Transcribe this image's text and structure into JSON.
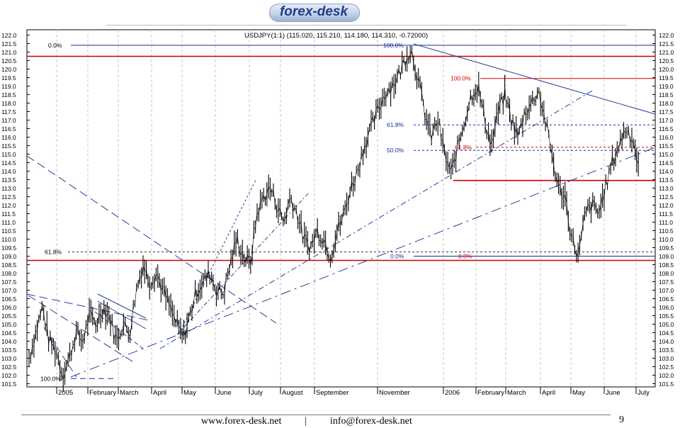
{
  "brand": {
    "logo_text": "forex-desk"
  },
  "footer": {
    "website": "www.forex-desk.net",
    "separator": "|",
    "email": "info@forex-desk.net",
    "page_number": "9"
  },
  "chart_data": {
    "type": "line",
    "title": "USDJPY(1:1) (115.020, 115.210, 114.180, 114.310, -0.72000)",
    "ylim": [
      101.5,
      122.0
    ],
    "yticks": [
      "122.0",
      "121.5",
      "121.0",
      "120.5",
      "120.0",
      "119.5",
      "119.0",
      "118.5",
      "118.0",
      "117.5",
      "117.0",
      "116.5",
      "116.0",
      "115.5",
      "115.0",
      "114.5",
      "114.0",
      "113.5",
      "113.0",
      "112.5",
      "112.0",
      "111.5",
      "111.0",
      "110.5",
      "110.0",
      "109.5",
      "109.0",
      "108.5",
      "108.0",
      "107.5",
      "107.0",
      "106.5",
      "106.0",
      "105.5",
      "105.0",
      "104.5",
      "104.0",
      "103.5",
      "103.0",
      "102.5",
      "102.0",
      "101.5"
    ],
    "months": [
      "2005",
      "February",
      "March",
      "April",
      "May",
      "June",
      "July",
      "August",
      "September",
      "November",
      "2006",
      "February",
      "March",
      "April",
      "May",
      "June",
      "July"
    ],
    "grid": true,
    "series": [
      {
        "values": [
          103.0,
          104.5,
          106.0,
          104.0,
          103.5,
          102.0,
          103.0,
          104.5,
          104.0,
          105.5,
          105.0,
          106.0,
          105.5,
          104.0,
          105.0,
          104.5,
          107.0,
          108.5,
          107.5,
          108.0,
          107.0,
          106.0,
          105.0,
          104.2,
          105.5,
          107.0,
          107.5,
          108.0,
          107.0,
          106.8,
          108.5,
          110.0,
          109.0,
          108.5,
          111.5,
          112.5,
          113.0,
          112.0,
          111.0,
          112.5,
          111.5,
          110.0,
          109.5,
          110.5,
          110.0,
          109.0,
          110.5,
          111.5,
          113.0,
          114.0,
          115.5,
          116.5,
          117.5,
          118.5,
          119.0,
          119.5,
          120.5,
          121.2,
          119.5,
          117.5,
          116.0,
          117.0,
          115.0,
          113.8,
          115.5,
          117.0,
          118.5,
          119.0,
          117.0,
          115.5,
          117.5,
          118.5,
          117.0,
          116.0,
          117.5,
          118.0,
          118.8,
          117.0,
          115.0,
          113.0,
          112.5,
          110.0,
          109.0,
          111.5,
          112.0,
          111.5,
          113.0,
          114.5,
          115.5,
          116.5,
          116.0,
          114.3
        ]
      }
    ],
    "annotations": [
      {
        "label": "0.0%",
        "y": 121.4
      },
      {
        "label": "100.0%",
        "y": 121.4
      },
      {
        "label": "100.0%",
        "y": 119.45
      },
      {
        "label": "61.8%",
        "y": 116.72
      },
      {
        "label": "61.8%",
        "y": 115.4
      },
      {
        "label": "50.0%",
        "y": 115.22
      },
      {
        "label": "61.8%",
        "y": 109.25
      },
      {
        "label": "0.0%",
        "y": 109.0
      },
      {
        "label": "0.0%",
        "y": 109.0
      },
      {
        "label": "100.0%",
        "y": 101.8
      }
    ],
    "support_resistance": [
      120.75,
      113.45,
      108.75
    ],
    "colors": {
      "price": "#000000",
      "horizontal": "#cc0000",
      "trend": "#2a3d9a",
      "grid": "#c8c8c8",
      "text": "#000000",
      "fib_blue": "#1a2d9a",
      "fib_red": "#cc0000"
    }
  }
}
